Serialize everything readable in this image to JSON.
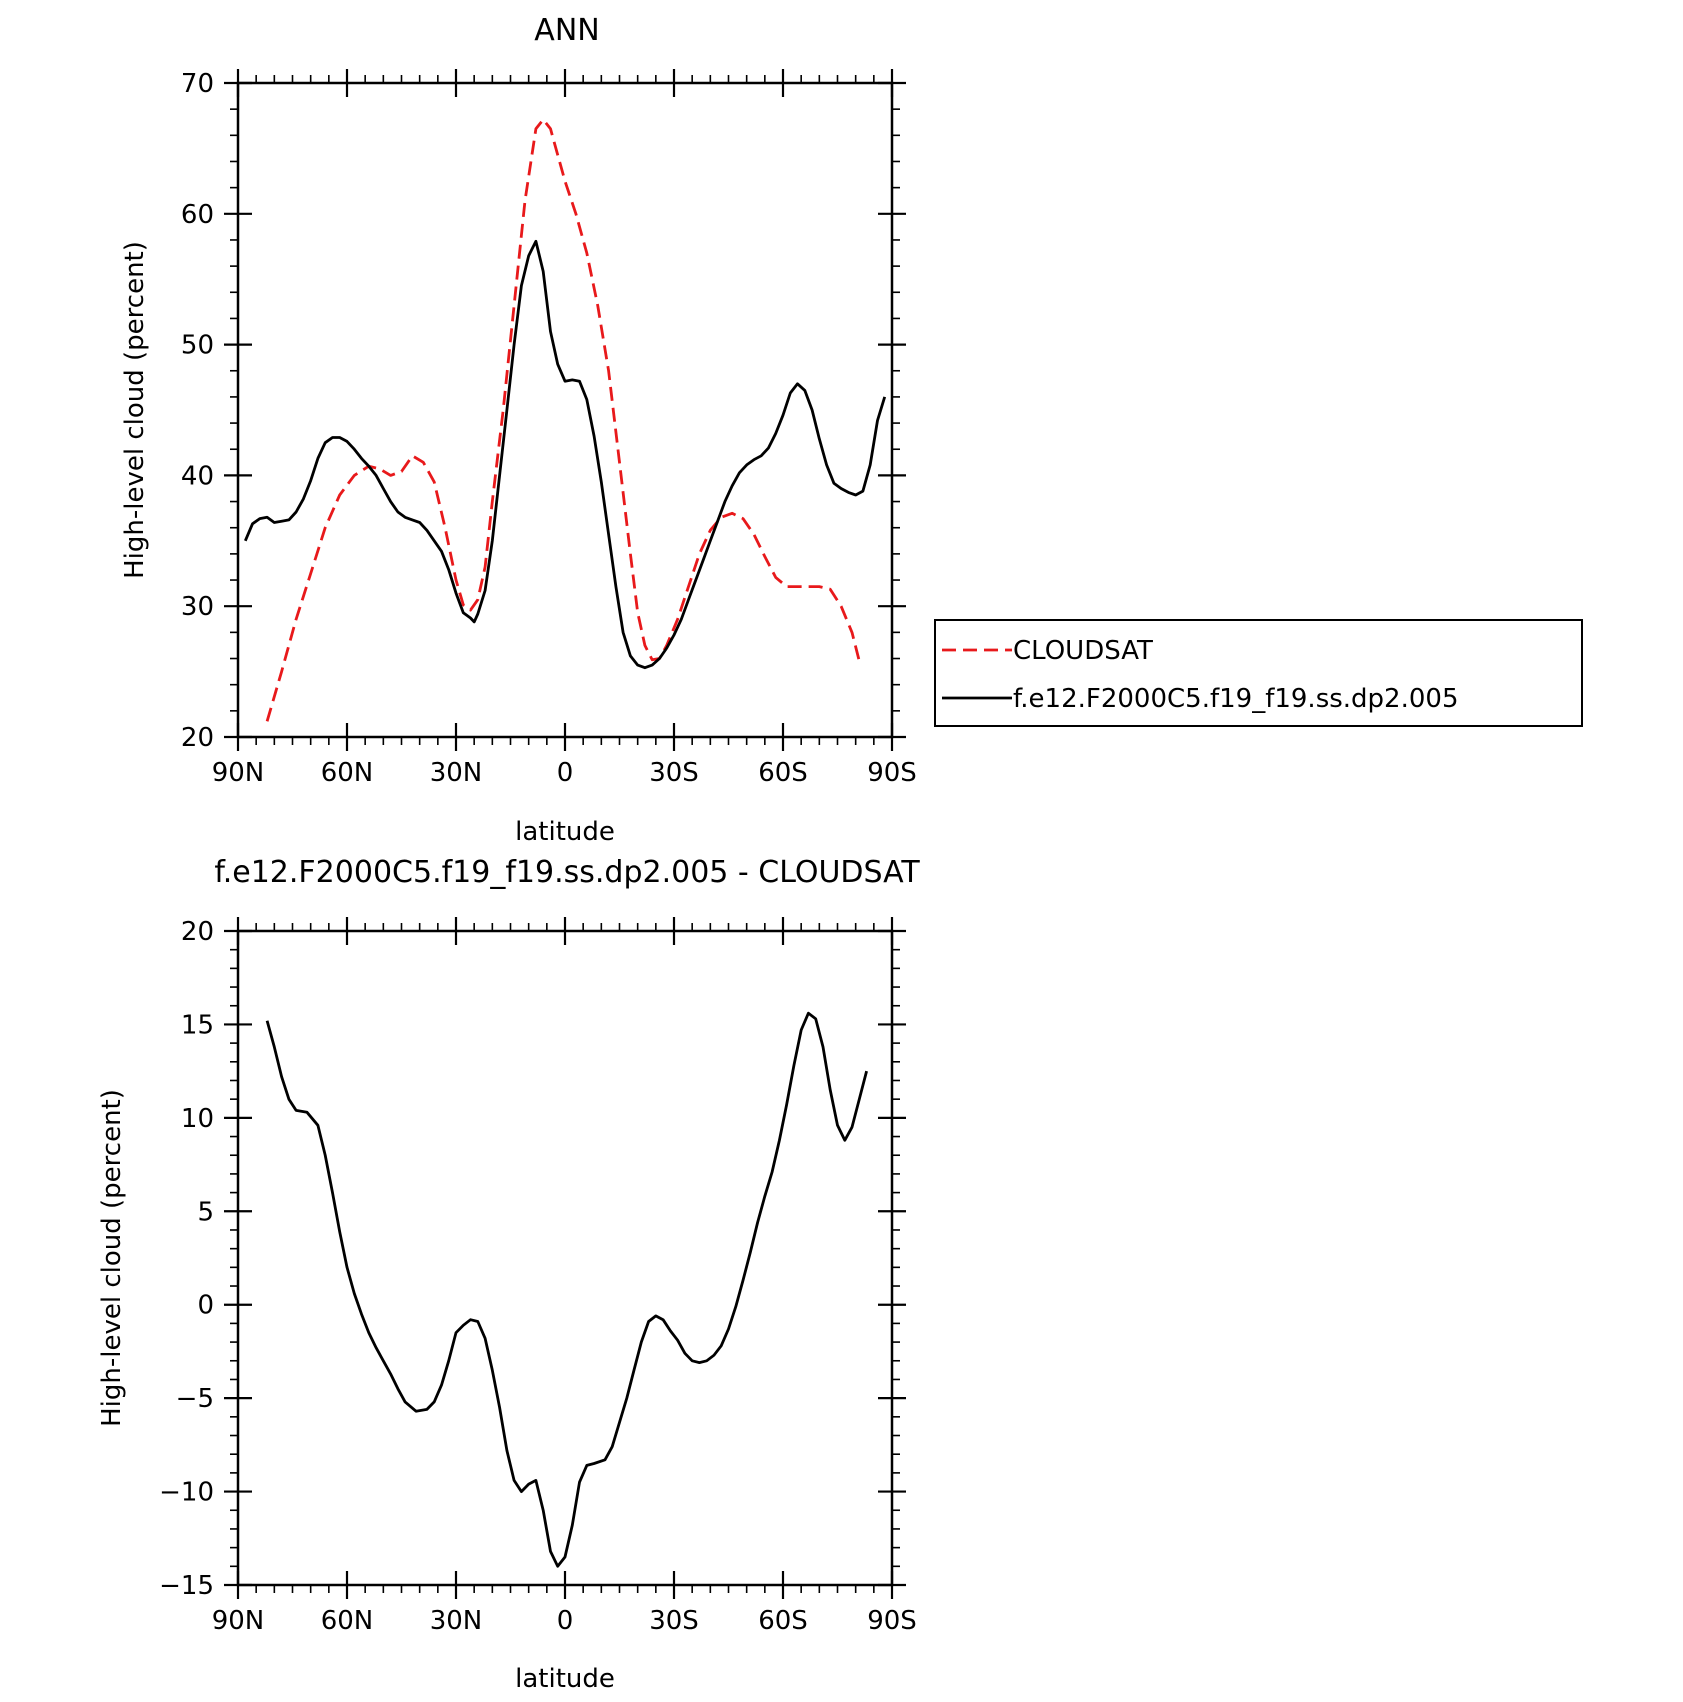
{
  "chart_data": [
    {
      "type": "line",
      "title": "ANN",
      "xlabel": "latitude",
      "ylabel": "High-level cloud (percent)",
      "xlim": [
        90,
        -90
      ],
      "ylim": [
        20,
        70
      ],
      "x_ticks": [
        90,
        60,
        30,
        0,
        -30,
        -60,
        -90
      ],
      "x_tick_labels": [
        "90N",
        "60N",
        "30N",
        "0",
        "30S",
        "60S",
        "90S"
      ],
      "y_ticks": [
        20,
        30,
        40,
        50,
        60,
        70
      ],
      "y_tick_labels": [
        "20",
        "30",
        "40",
        "50",
        "60",
        "70"
      ],
      "legend": {
        "placement": "right"
      },
      "grid": false,
      "series": [
        {
          "name": "CLOUDSAT",
          "color": "#e8191b",
          "dash": "dashed",
          "points": [
            [
              82,
              21.2
            ],
            [
              78,
              25
            ],
            [
              74,
              29
            ],
            [
              70,
              32.5
            ],
            [
              66,
              36
            ],
            [
              62,
              38.5
            ],
            [
              58,
              40
            ],
            [
              54,
              40.7
            ],
            [
              51,
              40.5
            ],
            [
              48,
              40
            ],
            [
              45,
              40.3
            ],
            [
              42,
              41.5
            ],
            [
              39,
              41
            ],
            [
              36,
              39.5
            ],
            [
              33,
              36
            ],
            [
              30,
              32
            ],
            [
              28,
              30.1
            ],
            [
              26,
              29.7
            ],
            [
              24,
              30.5
            ],
            [
              22,
              33
            ],
            [
              20,
              38
            ],
            [
              17,
              45
            ],
            [
              14,
              53
            ],
            [
              11,
              61
            ],
            [
              8,
              66.5
            ],
            [
              6,
              67.2
            ],
            [
              4,
              66.5
            ],
            [
              2,
              64.5
            ],
            [
              0,
              62.5
            ],
            [
              -3,
              60
            ],
            [
              -6,
              57
            ],
            [
              -9,
              53
            ],
            [
              -12,
              48
            ],
            [
              -15,
              41
            ],
            [
              -18,
              34
            ],
            [
              -20,
              29.5
            ],
            [
              -22,
              27
            ],
            [
              -24,
              25.9
            ],
            [
              -26,
              26
            ],
            [
              -28,
              27
            ],
            [
              -31,
              29
            ],
            [
              -34,
              31.5
            ],
            [
              -37,
              34
            ],
            [
              -40,
              35.8
            ],
            [
              -43,
              36.8
            ],
            [
              -46,
              37.1
            ],
            [
              -49,
              36.7
            ],
            [
              -52,
              35.5
            ],
            [
              -55,
              33.8
            ],
            [
              -58,
              32.2
            ],
            [
              -61,
              31.5
            ],
            [
              -64,
              31.5
            ],
            [
              -67,
              31.5
            ],
            [
              -70,
              31.5
            ],
            [
              -73,
              31.3
            ],
            [
              -76,
              30
            ],
            [
              -79,
              28
            ],
            [
              -81,
              25.8
            ]
          ]
        },
        {
          "name": "f.e12.F2000C5.f19_f19.ss.dp2.005",
          "color": "#000000",
          "dash": "solid",
          "points": [
            [
              88,
              35
            ],
            [
              86,
              36.3
            ],
            [
              84,
              36.7
            ],
            [
              82,
              36.8
            ],
            [
              80,
              36.4
            ],
            [
              78,
              36.5
            ],
            [
              76,
              36.6
            ],
            [
              74,
              37.2
            ],
            [
              72,
              38.2
            ],
            [
              70,
              39.6
            ],
            [
              68,
              41.3
            ],
            [
              66,
              42.5
            ],
            [
              64,
              42.9
            ],
            [
              62,
              42.9
            ],
            [
              60,
              42.6
            ],
            [
              58,
              42
            ],
            [
              56,
              41.3
            ],
            [
              54,
              40.7
            ],
            [
              52,
              40
            ],
            [
              50,
              39
            ],
            [
              48,
              38
            ],
            [
              46,
              37.2
            ],
            [
              44,
              36.8
            ],
            [
              42,
              36.6
            ],
            [
              40,
              36.4
            ],
            [
              38,
              35.8
            ],
            [
              36,
              35
            ],
            [
              34,
              34.2
            ],
            [
              32,
              32.8
            ],
            [
              30,
              31
            ],
            [
              28,
              29.5
            ],
            [
              26,
              29.1
            ],
            [
              25,
              28.8
            ],
            [
              24,
              29.4
            ],
            [
              22,
              31.2
            ],
            [
              20,
              35
            ],
            [
              18,
              40
            ],
            [
              16,
              45
            ],
            [
              14,
              50
            ],
            [
              12,
              54.5
            ],
            [
              10,
              56.8
            ],
            [
              8,
              57.9
            ],
            [
              6,
              55.6
            ],
            [
              4,
              51
            ],
            [
              2,
              48.5
            ],
            [
              0,
              47.2
            ],
            [
              -2,
              47.3
            ],
            [
              -4,
              47.2
            ],
            [
              -6,
              45.8
            ],
            [
              -8,
              43
            ],
            [
              -10,
              39.5
            ],
            [
              -12,
              35.5
            ],
            [
              -14,
              31.5
            ],
            [
              -16,
              28
            ],
            [
              -18,
              26.2
            ],
            [
              -20,
              25.5
            ],
            [
              -22,
              25.3
            ],
            [
              -24,
              25.5
            ],
            [
              -26,
              26
            ],
            [
              -28,
              26.8
            ],
            [
              -30,
              27.8
            ],
            [
              -32,
              29
            ],
            [
              -34,
              30.5
            ],
            [
              -36,
              32
            ],
            [
              -38,
              33.5
            ],
            [
              -40,
              35
            ],
            [
              -42,
              36.5
            ],
            [
              -44,
              38
            ],
            [
              -46,
              39.2
            ],
            [
              -48,
              40.2
            ],
            [
              -50,
              40.8
            ],
            [
              -52,
              41.2
            ],
            [
              -54,
              41.5
            ],
            [
              -56,
              42.1
            ],
            [
              -58,
              43.2
            ],
            [
              -60,
              44.6
            ],
            [
              -62,
              46.3
            ],
            [
              -64,
              47
            ],
            [
              -66,
              46.5
            ],
            [
              -68,
              45
            ],
            [
              -70,
              42.8
            ],
            [
              -72,
              40.8
            ],
            [
              -74,
              39.4
            ],
            [
              -76,
              39
            ],
            [
              -78,
              38.7
            ],
            [
              -80,
              38.5
            ],
            [
              -82,
              38.8
            ],
            [
              -84,
              40.8
            ],
            [
              -86,
              44.2
            ],
            [
              -88,
              46
            ]
          ]
        }
      ]
    },
    {
      "type": "line",
      "title": "f.e12.F2000C5.f19_f19.ss.dp2.005 - CLOUDSAT",
      "xlabel": "latitude",
      "ylabel": "High-level cloud (percent)",
      "xlim": [
        90,
        -90
      ],
      "ylim": [
        -15,
        20
      ],
      "x_ticks": [
        90,
        60,
        30,
        0,
        -30,
        -60,
        -90
      ],
      "x_tick_labels": [
        "90N",
        "60N",
        "30N",
        "0",
        "30S",
        "60S",
        "90S"
      ],
      "y_ticks": [
        -15,
        -10,
        -5,
        0,
        5,
        10,
        15,
        20
      ],
      "y_tick_labels": [
        "−15",
        "−10",
        "−5",
        "0",
        "5",
        "10",
        "15",
        "20"
      ],
      "grid": false,
      "series": [
        {
          "color": "#000000",
          "dash": "solid",
          "points": [
            [
              82,
              15.2
            ],
            [
              80,
              13.8
            ],
            [
              78,
              12.2
            ],
            [
              76,
              11
            ],
            [
              74,
              10.4
            ],
            [
              71,
              10.3
            ],
            [
              68,
              9.6
            ],
            [
              66,
              8
            ],
            [
              64,
              6
            ],
            [
              62,
              3.9
            ],
            [
              60,
              2
            ],
            [
              58,
              0.6
            ],
            [
              56,
              -0.5
            ],
            [
              54,
              -1.5
            ],
            [
              52,
              -2.3
            ],
            [
              50,
              -3
            ],
            [
              48,
              -3.7
            ],
            [
              46,
              -4.5
            ],
            [
              44,
              -5.2
            ],
            [
              41,
              -5.7
            ],
            [
              38,
              -5.6
            ],
            [
              36,
              -5.2
            ],
            [
              34,
              -4.3
            ],
            [
              32,
              -3
            ],
            [
              30,
              -1.5
            ],
            [
              28,
              -1.1
            ],
            [
              26,
              -0.8
            ],
            [
              24,
              -0.9
            ],
            [
              22,
              -1.8
            ],
            [
              20,
              -3.5
            ],
            [
              18,
              -5.5
            ],
            [
              16,
              -7.8
            ],
            [
              14,
              -9.4
            ],
            [
              12,
              -10
            ],
            [
              10,
              -9.6
            ],
            [
              8,
              -9.4
            ],
            [
              6,
              -11
            ],
            [
              4,
              -13.2
            ],
            [
              2,
              -14
            ],
            [
              0,
              -13.5
            ],
            [
              -2,
              -11.8
            ],
            [
              -4,
              -9.5
            ],
            [
              -6,
              -8.6
            ],
            [
              -8,
              -8.5
            ],
            [
              -11,
              -8.3
            ],
            [
              -13,
              -7.6
            ],
            [
              -15,
              -6.3
            ],
            [
              -17,
              -5
            ],
            [
              -19,
              -3.5
            ],
            [
              -21,
              -2
            ],
            [
              -23,
              -0.9
            ],
            [
              -25,
              -0.6
            ],
            [
              -27,
              -0.8
            ],
            [
              -29,
              -1.4
            ],
            [
              -31,
              -1.9
            ],
            [
              -33,
              -2.6
            ],
            [
              -35,
              -3
            ],
            [
              -37,
              -3.1
            ],
            [
              -39,
              -3
            ],
            [
              -41,
              -2.7
            ],
            [
              -43,
              -2.2
            ],
            [
              -45,
              -1.3
            ],
            [
              -47,
              -0.1
            ],
            [
              -49,
              1.3
            ],
            [
              -51,
              2.8
            ],
            [
              -53,
              4.4
            ],
            [
              -55,
              5.8
            ],
            [
              -57,
              7.1
            ],
            [
              -59,
              8.8
            ],
            [
              -61,
              10.7
            ],
            [
              -63,
              12.8
            ],
            [
              -65,
              14.7
            ],
            [
              -67,
              15.6
            ],
            [
              -69,
              15.3
            ],
            [
              -71,
              13.8
            ],
            [
              -73,
              11.5
            ],
            [
              -75,
              9.6
            ],
            [
              -77,
              8.8
            ],
            [
              -79,
              9.5
            ],
            [
              -81,
              11
            ],
            [
              -83,
              12.5
            ]
          ]
        }
      ]
    }
  ]
}
